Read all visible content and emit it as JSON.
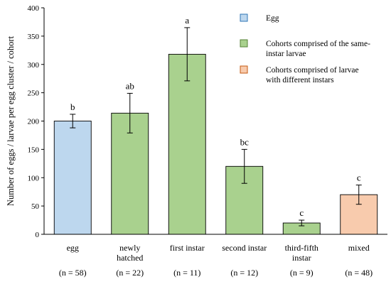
{
  "chart_data": {
    "type": "bar",
    "title": "",
    "xlabel": "",
    "ylabel": "Number of eggs / larvae per egg cluster / cohort",
    "ylim": [
      0,
      400
    ],
    "yticks": [
      0,
      50,
      100,
      150,
      200,
      250,
      300,
      350,
      400
    ],
    "grid": false,
    "legend_position": "top-right",
    "categories": [
      [
        "egg"
      ],
      [
        "newly",
        "hatched"
      ],
      [
        "first instar"
      ],
      [
        "second instar"
      ],
      [
        "third-fifth",
        "instar"
      ],
      [
        "mixed"
      ]
    ],
    "sample_sizes": [
      "(n = 58)",
      "(n = 22)",
      "(n = 11)",
      "(n = 12)",
      "(n = 9)",
      "(n = 48)"
    ],
    "values": [
      200,
      214,
      318,
      120,
      20,
      70
    ],
    "errors": [
      12,
      35,
      47,
      30,
      5,
      17
    ],
    "significance": [
      "b",
      "ab",
      "a",
      "bc",
      "c",
      "c"
    ],
    "bar_groups": [
      0,
      1,
      1,
      1,
      1,
      2
    ],
    "legend": [
      {
        "lines": [
          "Egg"
        ],
        "color": "#bdd7ee",
        "border": "#2e75b6"
      },
      {
        "lines": [
          "Cohorts comprised of the same-",
          "instar larvae"
        ],
        "color": "#a9d18e",
        "border": "#548235"
      },
      {
        "lines": [
          "Cohorts comprised of larvae",
          "with different instars"
        ],
        "color": "#f8cbad",
        "border": "#c55a11"
      }
    ]
  }
}
